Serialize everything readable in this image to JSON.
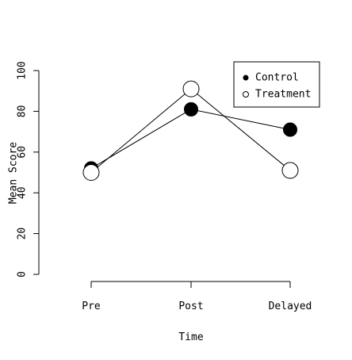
{
  "chart_data": {
    "type": "line",
    "categories": [
      "Pre",
      "Post",
      "Delayed"
    ],
    "series": [
      {
        "name": "Control",
        "values": [
          52,
          81,
          71
        ],
        "marker": "filled-circle",
        "color": "#000000"
      },
      {
        "name": "Treatment",
        "values": [
          50,
          91,
          51
        ],
        "marker": "open-circle",
        "color": "#000000"
      }
    ],
    "xlabel": "Time",
    "ylabel": "Mean Score",
    "ylim": [
      0,
      100
    ],
    "yticks": [
      0,
      20,
      40,
      60,
      80,
      100
    ],
    "grid": false,
    "legend_position": "top-right"
  }
}
